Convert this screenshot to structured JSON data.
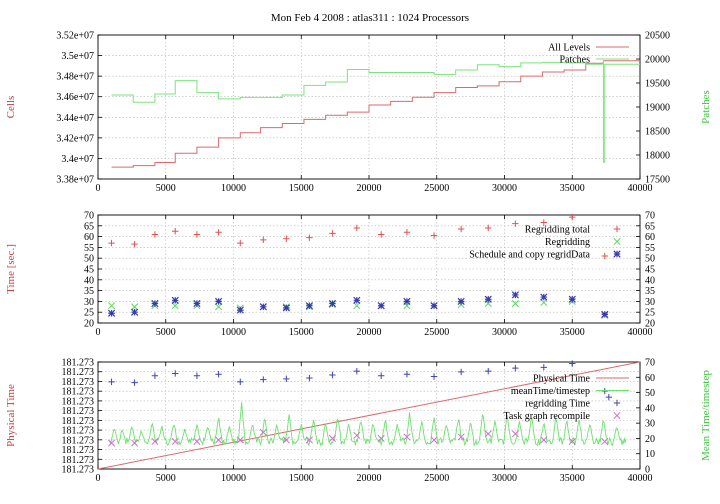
{
  "figure_title": "Mon Feb 4 2008 : atlas311 : 1024 Processors",
  "chart_data": [
    {
      "type": "line",
      "xlim": [
        0,
        40000
      ],
      "xticks": [
        "0",
        "5000",
        "10000",
        "15000",
        "20000",
        "25000",
        "30000",
        "35000",
        "40000"
      ],
      "y1label": "Cells",
      "y1lim": [
        33800000,
        35200000
      ],
      "y1ticks": [
        "3.38e+07",
        "3.4e+07",
        "3.42e+07",
        "3.44e+07",
        "3.46e+07",
        "3.48e+07",
        "3.5e+07",
        "3.52e+07"
      ],
      "y2label": "Patches",
      "y2lim": [
        17500,
        20500
      ],
      "y2ticks": [
        "17500",
        "18000",
        "18500",
        "19000",
        "19500",
        "20000",
        "20500"
      ],
      "grid": true,
      "legend_position": "top-right",
      "series": [
        {
          "name": "All Levels",
          "color": "#d96b6b",
          "axis": "y1",
          "style": "step",
          "x": [
            1000,
            2600,
            4200,
            5700,
            7300,
            8900,
            10500,
            12000,
            13600,
            15200,
            16800,
            18400,
            20000,
            21600,
            23200,
            24800,
            26400,
            28000,
            29600,
            31200,
            32800,
            34400,
            36000,
            37300
          ],
          "y": [
            33915000,
            33930000,
            33960000,
            34050000,
            34110000,
            34200000,
            34250000,
            34300000,
            34340000,
            34380000,
            34420000,
            34450000,
            34520000,
            34555000,
            34595000,
            34640000,
            34690000,
            34705000,
            34745000,
            34800000,
            34840000,
            34860000,
            34925000,
            34950000
          ]
        },
        {
          "name": "Patches",
          "color": "#7ee37e",
          "axis": "y2",
          "style": "step",
          "x": [
            1000,
            2600,
            4200,
            5700,
            7300,
            8900,
            10500,
            12000,
            13600,
            15200,
            16800,
            18400,
            20000,
            21600,
            23200,
            24800,
            26400,
            28000,
            29600,
            31200,
            32800,
            34400,
            36000,
            37300,
            37300,
            37400
          ],
          "y": [
            19250,
            19100,
            19270,
            19550,
            19300,
            19170,
            19200,
            19200,
            19250,
            19450,
            19520,
            19780,
            19720,
            19720,
            19720,
            19680,
            19770,
            19880,
            19840,
            19920,
            19930,
            19920,
            19890,
            19970,
            17850,
            19890
          ]
        }
      ]
    },
    {
      "type": "scatter",
      "xlim": [
        0,
        40000
      ],
      "xticks": [
        "0",
        "5000",
        "10000",
        "15000",
        "20000",
        "25000",
        "30000",
        "35000",
        "40000"
      ],
      "y1label": "Time [sec.]",
      "ylim": [
        20,
        70
      ],
      "yticks": [
        "20",
        "25",
        "30",
        "35",
        "40",
        "45",
        "50",
        "55",
        "60",
        "65",
        "70"
      ],
      "y2ticks": [
        "20",
        "25",
        "30",
        "35",
        "40",
        "45",
        "50",
        "55",
        "60",
        "65",
        "70"
      ],
      "grid": true,
      "legend_position": "top-right",
      "series": [
        {
          "name": "Regridding total",
          "color": "#e05252",
          "marker": "plus",
          "x": [
            1000,
            2700,
            4200,
            5700,
            7300,
            8900,
            10500,
            12200,
            13900,
            15600,
            17300,
            19100,
            20900,
            22800,
            24800,
            26800,
            28800,
            30800,
            32900,
            35000,
            37400
          ],
          "y": [
            57,
            56.5,
            61,
            62.5,
            61,
            62,
            57,
            58.5,
            59,
            59.5,
            61.5,
            64,
            61,
            62,
            60.5,
            63.5,
            64,
            66,
            66.5,
            69,
            51
          ]
        },
        {
          "name": "Regridding",
          "color": "#59d959",
          "marker": "x",
          "x": [
            1000,
            2700,
            4200,
            5700,
            7300,
            8900,
            10500,
            12200,
            13900,
            15600,
            17300,
            19100,
            20900,
            22800,
            24800,
            26800,
            28800,
            30800,
            32900,
            35000,
            37400
          ],
          "y": [
            28,
            27.5,
            28,
            28,
            28,
            27.5,
            27,
            27.5,
            27.5,
            27.5,
            28.5,
            28,
            28,
            28,
            28,
            28.5,
            29,
            29,
            29.5,
            30,
            23.5
          ]
        },
        {
          "name": "Schedule and copy regridData",
          "color": "#3a3ab0",
          "marker": "star",
          "x": [
            1000,
            2700,
            4200,
            5700,
            7300,
            8900,
            10500,
            12200,
            13900,
            15600,
            17300,
            19100,
            20900,
            22800,
            24800,
            26800,
            28800,
            30800,
            32900,
            35000,
            37400
          ],
          "y": [
            24.5,
            25,
            29,
            30.5,
            29,
            30,
            26,
            27.5,
            27,
            28,
            29,
            30.5,
            28,
            30,
            28,
            30,
            31,
            33,
            32,
            31,
            24
          ]
        }
      ]
    },
    {
      "type": "line",
      "xlim": [
        0,
        40000
      ],
      "xticks": [
        "0",
        "5000",
        "10000",
        "15000",
        "20000",
        "25000",
        "30000",
        "35000",
        "40000"
      ],
      "y1label": "Physical Time",
      "y1ticks": [
        "181.273",
        "181.273",
        "181.273",
        "181.273",
        "181.273",
        "181.273",
        "181.273",
        "181.273",
        "181.273",
        "181.273",
        "181.273",
        "181.273"
      ],
      "y2label": "Mean Time/timestep",
      "y2lim": [
        0,
        70
      ],
      "y2ticks": [
        "0",
        "10",
        "20",
        "30",
        "40",
        "50",
        "60",
        "70"
      ],
      "grid": true,
      "legend_position": "top-right",
      "series": [
        {
          "name": "Physical Time",
          "color": "#d96b6b",
          "axis": "y1",
          "style": "line",
          "x": [
            0,
            40000
          ],
          "y": [
            0,
            1
          ]
        },
        {
          "name": "meanTime/timestep",
          "color": "#6ee06e",
          "axis": "y2",
          "style": "spiky-line",
          "baseline": 18,
          "spike_x": [
            1200,
            1800,
            2500,
            3200,
            4000,
            4700,
            5600,
            6400,
            7300,
            8100,
            8900,
            9700,
            10600,
            11400,
            12300,
            13200,
            14100,
            15000,
            15900,
            16800,
            17700,
            18500,
            19400,
            20300,
            21200,
            22100,
            23000,
            23900,
            24800,
            25700,
            26600,
            27500,
            28400,
            29300,
            30200,
            31100,
            32000,
            32900,
            33800,
            34600,
            35500,
            36300,
            37300,
            38300
          ],
          "spike_y": [
            27,
            26,
            29,
            25,
            30,
            28,
            31,
            27,
            30,
            28,
            34,
            29,
            44,
            30,
            34,
            29,
            36,
            30,
            33,
            31,
            35,
            30,
            32,
            31,
            33,
            30,
            37,
            31,
            35,
            30,
            34,
            31,
            38,
            32,
            36,
            31,
            35,
            31,
            35,
            32,
            33,
            30,
            32,
            28
          ]
        },
        {
          "name": "regridding Time",
          "color": "#4444b0",
          "marker": "plus",
          "axis": "y2",
          "x": [
            1000,
            2700,
            4200,
            5700,
            7300,
            8900,
            10500,
            12200,
            13900,
            15600,
            17300,
            19100,
            20900,
            22800,
            24800,
            26800,
            28800,
            30800,
            32900,
            35000,
            37400,
            37700
          ],
          "y": [
            57,
            56.5,
            61,
            62.5,
            61,
            62,
            57,
            58.5,
            59,
            59.5,
            61.5,
            64,
            61,
            62,
            60.5,
            63.5,
            64,
            66,
            66.5,
            69,
            51,
            47
          ]
        },
        {
          "name": "Task graph recompile",
          "color": "#d070d0",
          "marker": "x",
          "axis": "y2",
          "x": [
            1000,
            2700,
            4200,
            5700,
            7300,
            8900,
            10500,
            12200,
            13900,
            15600,
            17300,
            19100,
            20900,
            22800,
            24800,
            26800,
            28800,
            30800,
            32900,
            35000,
            37400
          ],
          "y": [
            17,
            17,
            18,
            18,
            18,
            19,
            19,
            24,
            19,
            19,
            20,
            22,
            20,
            21,
            19,
            21,
            23,
            23,
            19,
            18,
            18
          ]
        }
      ]
    }
  ]
}
